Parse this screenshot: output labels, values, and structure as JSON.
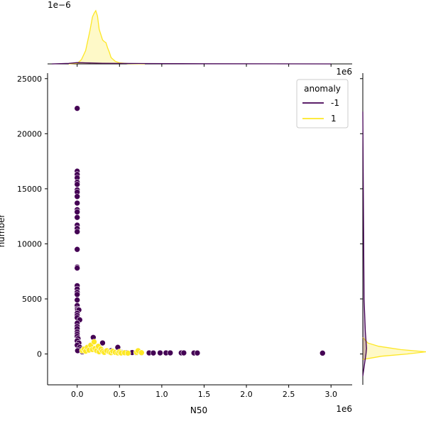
{
  "chart_data": {
    "type": "scatter",
    "xlabel": "N50",
    "ylabel": "number",
    "x_scale_label": "1e6",
    "y_scale_label_right": "1e6",
    "top_marginal_scale_label": "1e−6",
    "xlim": [
      -350000,
      3250000
    ],
    "ylim": [
      -2800,
      25500
    ],
    "x_ticks": [
      0,
      500000,
      1000000,
      1500000,
      2000000,
      2500000,
      3000000
    ],
    "x_tick_labels": [
      "0.0",
      "0.5",
      "1.0",
      "1.5",
      "2.0",
      "2.5",
      "3.0"
    ],
    "y_ticks": [
      0,
      5000,
      10000,
      15000,
      20000,
      25000
    ],
    "y_tick_labels": [
      "0",
      "5000",
      "10000",
      "15000",
      "20000",
      "25000"
    ],
    "grid": false,
    "legend": {
      "title": "anomaly",
      "placement": "top-right",
      "entries": [
        {
          "label": "-1",
          "color": "#440154"
        },
        {
          "label": "1",
          "color": "#fde725"
        }
      ]
    },
    "series": [
      {
        "name": "-1",
        "color": "#440154",
        "points": [
          [
            0,
            22300
          ],
          [
            0,
            16600
          ],
          [
            0,
            16300
          ],
          [
            0,
            16000
          ],
          [
            0,
            15600
          ],
          [
            0,
            15400
          ],
          [
            0,
            14900
          ],
          [
            0,
            14700
          ],
          [
            0,
            14300
          ],
          [
            0,
            13700
          ],
          [
            0,
            13100
          ],
          [
            0,
            12900
          ],
          [
            0,
            12400
          ],
          [
            0,
            11700
          ],
          [
            0,
            11400
          ],
          [
            0,
            11100
          ],
          [
            0,
            9500
          ],
          [
            0,
            7900
          ],
          [
            0,
            7800
          ],
          [
            0,
            6200
          ],
          [
            0,
            5900
          ],
          [
            0,
            5600
          ],
          [
            0,
            5400
          ],
          [
            0,
            4900
          ],
          [
            0,
            4400
          ],
          [
            0,
            4100
          ],
          [
            5000,
            4000
          ],
          [
            20000,
            4000
          ],
          [
            0,
            3700
          ],
          [
            0,
            3500
          ],
          [
            0,
            3300
          ],
          [
            30000,
            3100
          ],
          [
            0,
            2800
          ],
          [
            0,
            2500
          ],
          [
            0,
            2300
          ],
          [
            0,
            2000
          ],
          [
            0,
            1800
          ],
          [
            0,
            1600
          ],
          [
            10000,
            1400
          ],
          [
            0,
            1200
          ],
          [
            20000,
            1000
          ],
          [
            0,
            800
          ],
          [
            30000,
            600
          ],
          [
            40000,
            400
          ],
          [
            60000,
            200
          ],
          [
            5000,
            300
          ],
          [
            190000,
            1500
          ],
          [
            300000,
            1000
          ],
          [
            480000,
            600
          ],
          [
            400000,
            300
          ],
          [
            520000,
            150
          ],
          [
            580000,
            120
          ],
          [
            650000,
            130
          ],
          [
            700000,
            110
          ],
          [
            760000,
            100
          ],
          [
            850000,
            100
          ],
          [
            900000,
            90
          ],
          [
            980000,
            100
          ],
          [
            1050000,
            100
          ],
          [
            1100000,
            100
          ],
          [
            1230000,
            100
          ],
          [
            1260000,
            100
          ],
          [
            1380000,
            90
          ],
          [
            1420000,
            90
          ],
          [
            2900000,
            80
          ]
        ]
      },
      {
        "name": "1",
        "color": "#fde725",
        "points": [
          [
            60000,
            300
          ],
          [
            80000,
            450
          ],
          [
            100000,
            250
          ],
          [
            120000,
            600
          ],
          [
            140000,
            350
          ],
          [
            160000,
            800
          ],
          [
            180000,
            400
          ],
          [
            200000,
            1100
          ],
          [
            210000,
            500
          ],
          [
            230000,
            300
          ],
          [
            250000,
            700
          ],
          [
            260000,
            200
          ],
          [
            280000,
            450
          ],
          [
            300000,
            250
          ],
          [
            320000,
            150
          ],
          [
            350000,
            300
          ],
          [
            380000,
            180
          ],
          [
            400000,
            120
          ],
          [
            420000,
            250
          ],
          [
            450000,
            150
          ],
          [
            480000,
            100
          ],
          [
            500000,
            200
          ],
          [
            520000,
            90
          ],
          [
            560000,
            110
          ],
          [
            600000,
            80
          ],
          [
            700000,
            150
          ],
          [
            720000,
            300
          ],
          [
            760000,
            120
          ]
        ]
      }
    ],
    "top_marginal": {
      "series": [
        {
          "name": "1",
          "color": "#fde725",
          "x": [
            -100000,
            0,
            50000,
            100000,
            150000,
            180000,
            200000,
            220000,
            240000,
            260000,
            280000,
            300000,
            320000,
            340000,
            360000,
            380000,
            400000,
            450000,
            500000,
            600000,
            800000
          ],
          "density": [
            0,
            0.01,
            0.08,
            0.25,
            0.62,
            0.88,
            0.95,
            1.0,
            0.9,
            0.65,
            0.55,
            0.45,
            0.42,
            0.4,
            0.3,
            0.22,
            0.12,
            0.05,
            0.02,
            0.005,
            0
          ]
        },
        {
          "name": "-1",
          "color": "#440154",
          "x": [
            -300000,
            -100000,
            0,
            100000,
            300000,
            800000,
            1500000,
            3000000
          ],
          "density": [
            0,
            0.01,
            0.025,
            0.02,
            0.012,
            0.006,
            0.002,
            0
          ]
        }
      ]
    },
    "right_marginal": {
      "series": [
        {
          "name": "1",
          "color": "#fde725",
          "y": [
            -500,
            -200,
            0,
            200,
            400,
            700,
            1000,
            1500
          ],
          "density": [
            0,
            0.3,
            0.7,
            1.0,
            0.6,
            0.25,
            0.08,
            0
          ]
        },
        {
          "name": "-1",
          "color": "#440154",
          "y": [
            -2000,
            0,
            500,
            2000,
            5000,
            15000,
            22000
          ],
          "density": [
            0,
            0.05,
            0.06,
            0.04,
            0.02,
            0.008,
            0
          ]
        }
      ]
    }
  }
}
